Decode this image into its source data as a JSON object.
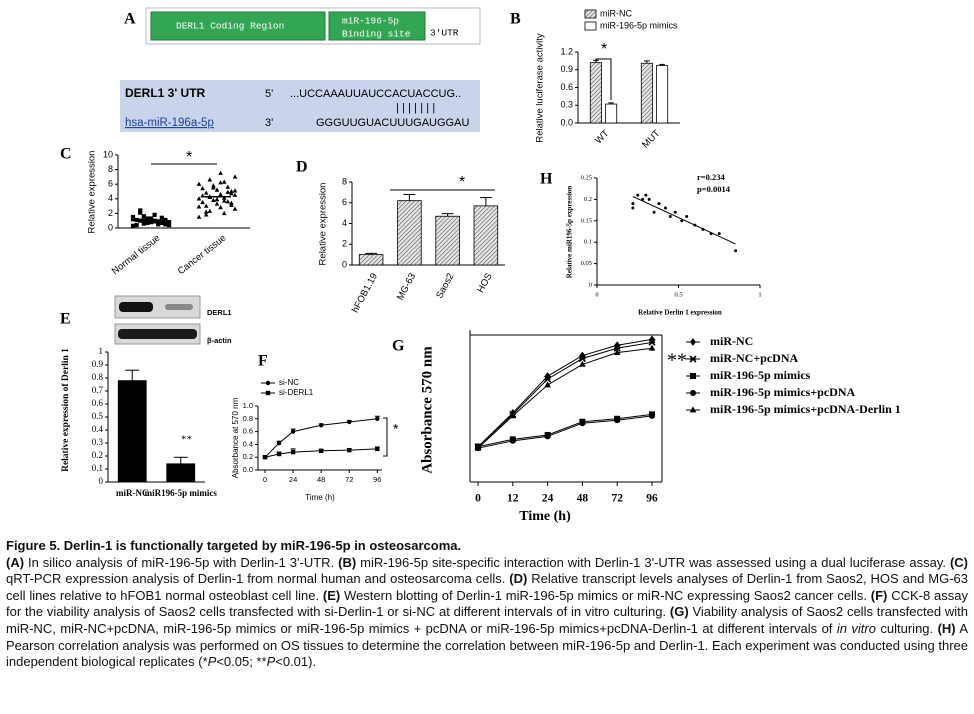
{
  "panel_a": {
    "label": "A",
    "coding": "DERL1 Coding Region",
    "binding": [
      "miR-196-5p",
      "Binding site"
    ],
    "utr": "3'UTR",
    "seq": [
      {
        "name": "DERL1 3' UTR",
        "end": "5'",
        "seq": "...UCCAAAUUAUCCACUACCUG.."
      },
      {
        "name": "hsa-miR-196a-5p",
        "end": "3'",
        "seq": "GGGUUGUACUUUGAUGGAU"
      }
    ],
    "pairing": "|||||||"
  },
  "chart_data": [
    {
      "type": "bar",
      "label": "B",
      "ylabel": "Relative luciferase activity",
      "categories": [
        "WT",
        "MUT"
      ],
      "series": [
        {
          "name": "miR-NC",
          "color": "#9a9a9a",
          "pattern": "hatch",
          "values": [
            1.02,
            1.01
          ],
          "errors": [
            0.04,
            0.04
          ]
        },
        {
          "name": "miR-196-5p mimics",
          "color": "#ffffff",
          "values": [
            0.32,
            0.97
          ],
          "errors": [
            0.02,
            0.02
          ]
        }
      ],
      "ylim": [
        0,
        1.2
      ],
      "yticks": [
        {
          "value": 0,
          "label": "0.0"
        },
        {
          "value": 0.3,
          "label": "0.3"
        },
        {
          "value": 0.6,
          "label": "0.6"
        },
        {
          "value": 0.9,
          "label": "0.9"
        },
        {
          "value": 1.2,
          "label": "1.2"
        }
      ],
      "annotations": [
        "*"
      ]
    },
    {
      "type": "dotplot",
      "label": "C",
      "ylabel": "Relative expression",
      "categories": [
        "Normal tissue",
        "Cancer tissue"
      ],
      "markers": [
        "square",
        "triangle"
      ],
      "values": [
        [
          0.3,
          0.5,
          0.6,
          0.8,
          0.9,
          1.0,
          1.1,
          1.2,
          0.4,
          0.7,
          1.3,
          1.5,
          0.9,
          1.0,
          0.6,
          1.8,
          2.1,
          0.5,
          0.8,
          1.1,
          1.4,
          0.7,
          1.2,
          0.9,
          1.6,
          0.4,
          1.0,
          2.4,
          0.6,
          1.3
        ],
        [
          1.5,
          2.0,
          2.3,
          2.6,
          2.8,
          3.0,
          3.1,
          3.3,
          3.5,
          3.6,
          3.8,
          4.0,
          4.1,
          4.3,
          4.5,
          4.6,
          4.8,
          5.0,
          5.2,
          5.4,
          5.6,
          5.8,
          6.0,
          6.3,
          6.6,
          7.0,
          7.5,
          2.2,
          3.4,
          3.9,
          4.4,
          4.9,
          5.5,
          2.9,
          3.7,
          4.2,
          5.1,
          6.2,
          1.8,
          4.7
        ]
      ],
      "ylim": [
        0,
        10
      ],
      "yticks": [
        0,
        2,
        4,
        6,
        8,
        10
      ],
      "annotations": [
        "*"
      ]
    },
    {
      "type": "bar",
      "label": "D",
      "ylabel": "Relative expression",
      "categories": [
        "hFOB1.19",
        "MG-63",
        "Saos2",
        "HOS"
      ],
      "values": [
        1.0,
        6.2,
        4.7,
        5.7
      ],
      "errors": [
        0.12,
        0.6,
        0.25,
        0.8
      ],
      "color": "#bdbdbd",
      "pattern": "hatch",
      "ylim": [
        0,
        8
      ],
      "yticks": [
        0,
        2,
        4,
        6,
        8
      ],
      "annotations": [
        "*"
      ]
    },
    {
      "type": "scatter",
      "label": "H",
      "xlabel": "Relative Derlin 1 expression",
      "ylabel": "Relative miR196-5p expression",
      "x": [
        0.22,
        0.22,
        0.25,
        0.28,
        0.3,
        0.32,
        0.35,
        0.38,
        0.42,
        0.45,
        0.48,
        0.52,
        0.55,
        0.6,
        0.65,
        0.7,
        0.75,
        0.85
      ],
      "y": [
        0.18,
        0.19,
        0.21,
        0.2,
        0.21,
        0.2,
        0.17,
        0.19,
        0.18,
        0.16,
        0.17,
        0.15,
        0.16,
        0.14,
        0.13,
        0.12,
        0.12,
        0.08
      ],
      "xlim": [
        0,
        1
      ],
      "xticks": [
        0,
        0.5,
        1
      ],
      "ylim": [
        0,
        0.25
      ],
      "yticks": [
        0,
        0.05,
        0.1,
        0.15,
        0.2,
        0.25
      ],
      "annotations": [
        "r=0.234",
        "p=0.0014"
      ]
    },
    {
      "type": "bar",
      "label": "E",
      "ylabel": "Relative expression of Derlin 1",
      "categories": [
        "miR-NC",
        "miR196-5p mimics"
      ],
      "values": [
        0.78,
        0.14
      ],
      "errors": [
        0.08,
        0.05
      ],
      "color": "#000000",
      "ylim": [
        0,
        1
      ],
      "yticks": [
        0,
        0.1,
        0.2,
        0.3,
        0.4,
        0.5,
        0.6,
        0.7,
        0.8,
        0.9,
        1
      ],
      "annotations": [
        "**"
      ],
      "blot_labels": [
        "DERL1",
        "β-actin"
      ]
    },
    {
      "type": "line",
      "label": "F",
      "xlabel": "Time (h)",
      "ylabel": "Absorbance at 570 nm",
      "x": [
        0,
        12,
        24,
        48,
        72,
        96
      ],
      "series": [
        {
          "name": "si-NC",
          "color": "#000000",
          "marker": "circle",
          "values": [
            0.2,
            0.42,
            0.6,
            0.7,
            0.75,
            0.8
          ],
          "errors": [
            0.02,
            0.03,
            0.04,
            0.02,
            0.02,
            0.04
          ]
        },
        {
          "name": "si-DERL1",
          "color": "#000000",
          "marker": "square",
          "values": [
            0.2,
            0.25,
            0.28,
            0.3,
            0.31,
            0.33
          ],
          "errors": [
            0.02,
            0.03,
            0.05,
            0.02,
            0.02,
            0.03
          ]
        }
      ],
      "xlim": [
        -6,
        100
      ],
      "xticks": [
        0,
        24,
        48,
        72,
        96
      ],
      "ylim": [
        0,
        1
      ],
      "yticks": [
        {
          "value": 0,
          "label": "0.0"
        },
        {
          "value": 0.2,
          "label": "0.2"
        },
        {
          "value": 0.4,
          "label": "0.4"
        },
        {
          "value": 0.6,
          "label": "0.6"
        },
        {
          "value": 0.8,
          "label": "0.8"
        },
        {
          "value": 1,
          "label": "1.0"
        }
      ],
      "annotations": [
        "*"
      ]
    },
    {
      "type": "line",
      "label": "G",
      "xlabel": "Time (h)",
      "ylabel": "Absorbance 570 nm",
      "categories": [
        "0",
        "12",
        "24",
        "48",
        "72",
        "96"
      ],
      "series": [
        {
          "name": "miR-NC",
          "color": "#000000",
          "marker": "diamond",
          "values": [
            0.24,
            0.47,
            0.72,
            0.86,
            0.93,
            0.97
          ]
        },
        {
          "name": "miR-NC+pcDNA",
          "color": "#000000",
          "marker": "star",
          "values": [
            0.24,
            0.46,
            0.7,
            0.84,
            0.91,
            0.95
          ]
        },
        {
          "name": "miR-196-5p mimics",
          "color": "#000000",
          "marker": "square",
          "values": [
            0.24,
            0.29,
            0.32,
            0.41,
            0.43,
            0.46
          ]
        },
        {
          "name": "miR-196-5p mimics+pcDNA",
          "color": "#000000",
          "marker": "circle",
          "values": [
            0.23,
            0.28,
            0.31,
            0.4,
            0.42,
            0.45
          ]
        },
        {
          "name": "miR-196-5p mimics+pcDNA-Derlin 1",
          "color": "#000000",
          "marker": "triangle",
          "values": [
            0.23,
            0.45,
            0.66,
            0.8,
            0.88,
            0.91
          ]
        }
      ],
      "ylim": [
        0,
        1
      ],
      "annotations": [
        "**"
      ]
    }
  ],
  "caption": {
    "title": "Figure 5. Derlin-1 is functionally targeted by miR-196-5p in osteosarcoma.",
    "body": [
      {
        "text": "(A)",
        "style": "b"
      },
      {
        "text": " In silico analysis of miR-196-5p with Derlin-1 3'-UTR. "
      },
      {
        "text": "(B)",
        "style": "b"
      },
      {
        "text": " miR-196-5p site-specific interaction with Derlin-1 3'-UTR was assessed using a dual luciferase assay. "
      },
      {
        "text": "(C)",
        "style": "b"
      },
      {
        "text": " qRT-PCR expression analysis of Derlin-1 from normal human and osteosarcoma cells. "
      },
      {
        "text": "(D)",
        "style": "b"
      },
      {
        "text": " Relative transcript levels analyses of Derlin-1 from Saos2, HOS and MG-63 cell lines relative to hFOB1 normal osteoblast cell line. "
      },
      {
        "text": "(E)",
        "style": "b"
      },
      {
        "text": " Western blotting of Derlin-1 miR-196-5p mimics or miR-NC expressing Saos2 cancer cells. "
      },
      {
        "text": "(F)",
        "style": "b"
      },
      {
        "text": " CCK-8 assay for the viability analysis of Saos2 cells transfected with si-Derlin-1 or si-NC at different intervals of in vitro culturing. "
      },
      {
        "text": "(G)",
        "style": "b"
      },
      {
        "text": " Viability analysis of Saos2 cells transfected with miR-NC, miR-NC+pcDNA, miR-196-5p mimics or miR-196-5p mimics + pcDNA or miR-196-5p mimics+pcDNA-Derlin-1 at different intervals of "
      },
      {
        "text": "in vitro",
        "style": "i"
      },
      {
        "text": " culturing. "
      },
      {
        "text": "(H)",
        "style": "b"
      },
      {
        "text": " A Pearson correlation analysis was performed on OS tissues to determine the correlation between miR-196-5p and Derlin-1. Each experiment was conducted using three independent biological replicates (*"
      },
      {
        "text": "P",
        "style": "i"
      },
      {
        "text": "<0.05; **"
      },
      {
        "text": "P",
        "style": "i"
      },
      {
        "text": "<0.01)."
      }
    ]
  }
}
